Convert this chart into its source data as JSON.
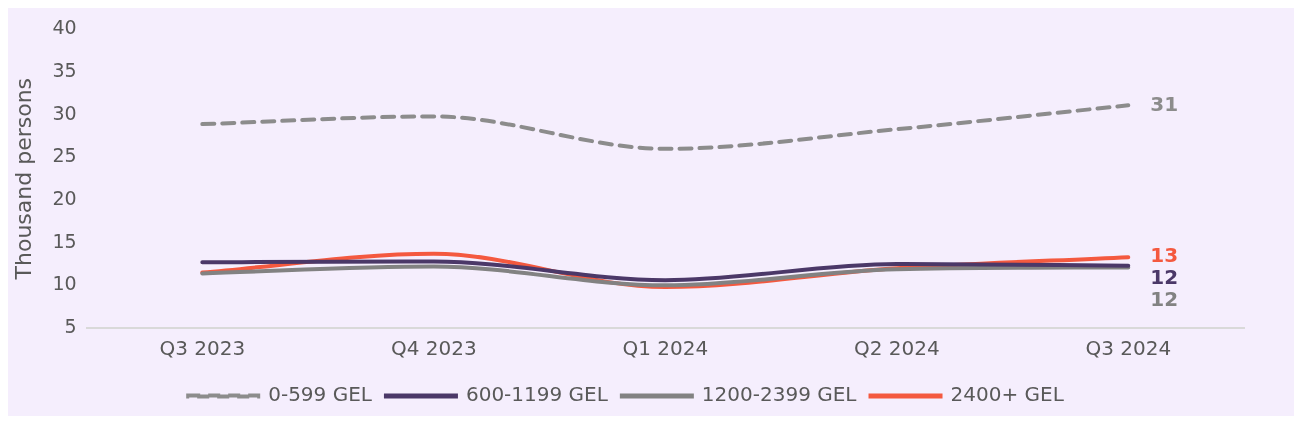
{
  "chart_data": {
    "type": "line",
    "ylabel": "Thousand persons",
    "categories": [
      "Q3 2023",
      "Q4 2023",
      "Q1 2024",
      "Q2 2024",
      "Q3 2024"
    ],
    "ylim": [
      5,
      40
    ],
    "yticks": [
      5,
      10,
      15,
      20,
      25,
      30,
      35,
      40
    ],
    "grid": false,
    "legend": "bottom",
    "marker": "none",
    "series": [
      {
        "name": "0-599 GEL",
        "color": "#8c8c8c",
        "line_style": "dashed",
        "values": [
          28.9,
          29.8,
          26.0,
          28.3,
          31.1
        ],
        "value_labels": [
          null,
          null,
          null,
          null,
          "31"
        ]
      },
      {
        "name": "600-1199 GEL",
        "color": "#4b3868",
        "line_style": "solid",
        "values": [
          12.7,
          12.8,
          10.6,
          12.5,
          12.3
        ],
        "value_labels": [
          null,
          null,
          null,
          null,
          "12"
        ]
      },
      {
        "name": "1200-2399 GEL",
        "color": "#828282",
        "line_style": "solid",
        "values": [
          11.4,
          12.2,
          10.0,
          11.9,
          12.1
        ],
        "value_labels": [
          null,
          null,
          null,
          null,
          "12"
        ]
      },
      {
        "name": "2400+ GEL",
        "color": "#f4593f",
        "line_style": "solid",
        "values": [
          11.5,
          13.7,
          9.8,
          12.0,
          13.3
        ],
        "value_labels": [
          null,
          null,
          null,
          null,
          "13"
        ]
      }
    ]
  }
}
